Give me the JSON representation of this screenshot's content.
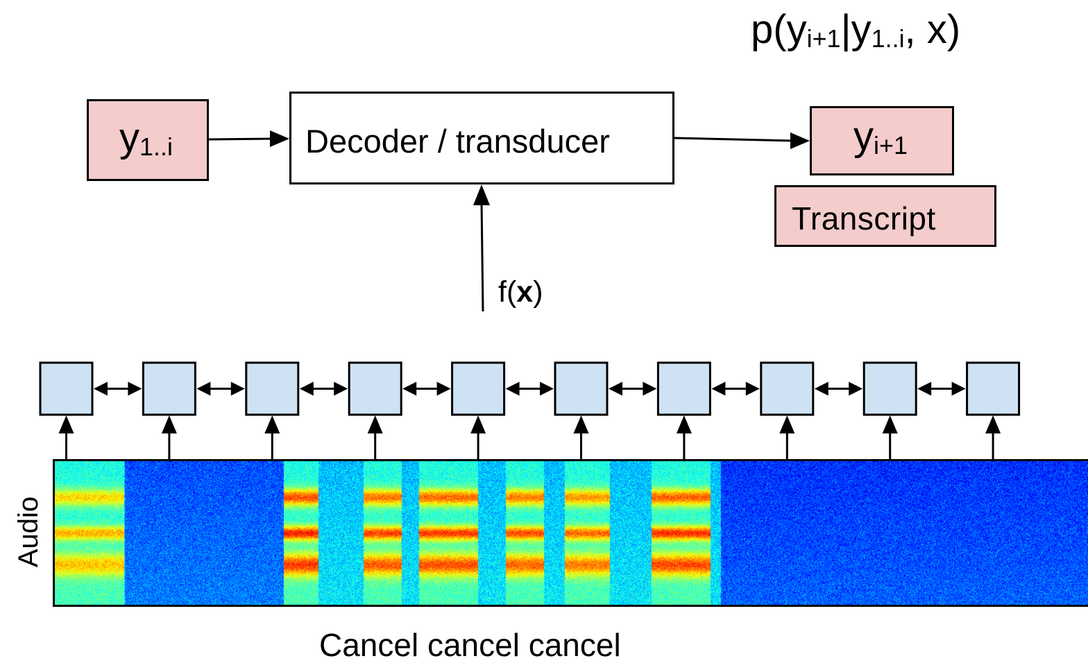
{
  "formula": {
    "prefix": "p(y",
    "sub1": "i+1",
    "mid": "|y",
    "sub2": "1..i",
    "suffix": ", x)"
  },
  "input_token": {
    "base": "y",
    "sub": "1..i"
  },
  "decoder_label": "Decoder / transducer",
  "output_token": {
    "base": "y",
    "sub": "i+1"
  },
  "transcript_label": "Transcript",
  "encoder_output": {
    "prefix": "f(",
    "bold": "x",
    "suffix": ")"
  },
  "encoder": {
    "cell_count": 10,
    "cell_color": "#cfe2f3"
  },
  "audio_label": "Audio",
  "caption": "Cancel cancel cancel",
  "colors": {
    "token_fill": "#f4cccc",
    "cell_fill": "#cfe2f3",
    "stroke": "#000000"
  }
}
